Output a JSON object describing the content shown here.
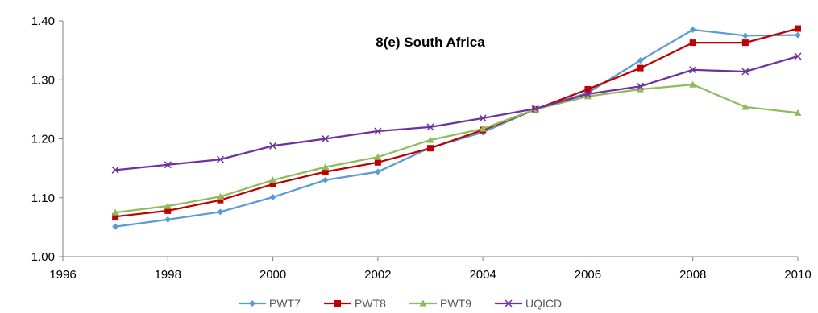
{
  "chart_data": {
    "type": "line",
    "title": "8(e) South Africa",
    "xlabel": "",
    "ylabel": "",
    "xlim": [
      1996,
      2010
    ],
    "ylim": [
      1.0,
      1.4
    ],
    "x_ticks": [
      "1996",
      "1998",
      "2000",
      "2002",
      "2004",
      "2006",
      "2008",
      "2010"
    ],
    "y_ticks": [
      "1.00",
      "1.10",
      "1.20",
      "1.30",
      "1.40"
    ],
    "grid": false,
    "legend_position": "bottom",
    "x": [
      1997,
      1998,
      1999,
      2000,
      2001,
      2002,
      2003,
      2004,
      2005,
      2006,
      2007,
      2008,
      2009,
      2010
    ],
    "series": [
      {
        "name": "PWT7",
        "color": "#5B9BD5",
        "marker": "diamond",
        "values": [
          1.051,
          1.063,
          1.076,
          1.101,
          1.13,
          1.144,
          1.185,
          1.211,
          1.25,
          1.278,
          1.333,
          1.385,
          1.375,
          1.376
        ]
      },
      {
        "name": "PWT8",
        "color": "#C00000",
        "marker": "square",
        "values": [
          1.068,
          1.078,
          1.096,
          1.123,
          1.144,
          1.16,
          1.184,
          1.215,
          1.25,
          1.284,
          1.32,
          1.363,
          1.363,
          1.387
        ]
      },
      {
        "name": "PWT9",
        "color": "#8FBC5A",
        "marker": "triangle",
        "values": [
          1.075,
          1.086,
          1.102,
          1.13,
          1.152,
          1.169,
          1.198,
          1.217,
          1.25,
          1.272,
          1.284,
          1.292,
          1.254,
          1.244
        ]
      },
      {
        "name": "UQICD",
        "color": "#7030A0",
        "marker": "x",
        "values": [
          1.147,
          1.156,
          1.165,
          1.188,
          1.2,
          1.213,
          1.22,
          1.235,
          1.251,
          1.276,
          1.289,
          1.317,
          1.314,
          1.34
        ]
      }
    ]
  }
}
